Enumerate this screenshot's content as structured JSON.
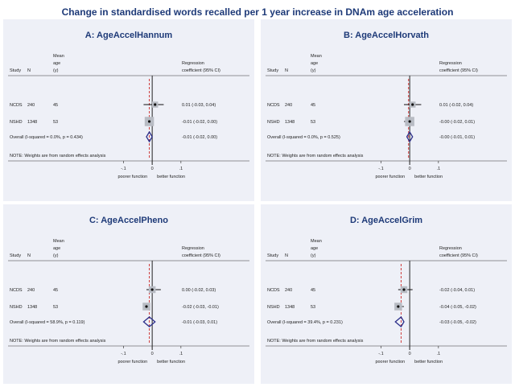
{
  "title": "Change in standardised words recalled per 1 year increase in DNAm age acceleration",
  "column_headers": {
    "study": "Study",
    "n": "N",
    "mean_age_lines": [
      "Mean",
      "age",
      "(y)"
    ],
    "mean_age_lines_d": [
      "Mean",
      "age",
      "(y)"
    ],
    "coef_lines": [
      "Regression",
      "coefficient (95% CI)"
    ]
  },
  "note": "NOTE: Weights are from random effects analysis",
  "x_caption_left": "poorer function",
  "x_caption_right": "better function",
  "tick_labels": [
    "-.1",
    "0",
    ".1"
  ],
  "chart_data": [
    {
      "type": "forest",
      "title": "A: AgeAccelHannum",
      "xlim": [
        -0.16,
        0.12
      ],
      "ticks": [
        -0.1,
        0,
        0.1
      ],
      "null_line": 0,
      "overall_line": -0.01,
      "studies": [
        {
          "study": "NCDS",
          "n": "240",
          "age": "45",
          "est": 0.01,
          "lo": -0.03,
          "hi": 0.04,
          "label": "0.01 (-0.03, 0.04)",
          "weight": 0.35
        },
        {
          "study": "NSHD",
          "n": "1348",
          "age": "53",
          "est": -0.01,
          "lo": -0.02,
          "hi": 0.0,
          "label": "-0.01 (-0.02, 0.00)",
          "weight": 0.75
        }
      ],
      "overall": {
        "label_text": "Overall  (I-squared = 0.0%, p = 0.434)",
        "est": -0.01,
        "lo": -0.02,
        "hi": 0.0,
        "label": "-0.01 (-0.02, 0.00)"
      }
    },
    {
      "type": "forest",
      "title": "B: AgeAccelHorvath",
      "xlim": [
        -0.16,
        0.12
      ],
      "ticks": [
        -0.1,
        0,
        0.1
      ],
      "null_line": 0,
      "overall_line": -0.004,
      "studies": [
        {
          "study": "NCDS",
          "n": "240",
          "age": "45",
          "est": 0.01,
          "lo": -0.02,
          "hi": 0.04,
          "label": "0.01 (-0.02, 0.04)",
          "weight": 0.35
        },
        {
          "study": "NSHD",
          "n": "1348",
          "age": "53",
          "est": -0.0,
          "lo": -0.02,
          "hi": 0.01,
          "label": "-0.00 (-0.02, 0.01)",
          "weight": 0.75
        }
      ],
      "overall": {
        "label_text": "Overall  (I-squared = 0.0%, p = 0.525)",
        "est": -0.0,
        "lo": -0.01,
        "hi": 0.01,
        "label": "-0.00 (-0.01, 0.01)"
      }
    },
    {
      "type": "forest",
      "title": "C: AgeAccelPheno",
      "xlim": [
        -0.16,
        0.12
      ],
      "ticks": [
        -0.1,
        0,
        0.1
      ],
      "null_line": 0,
      "overall_line": -0.01,
      "studies": [
        {
          "study": "NCDS",
          "n": "240",
          "age": "45",
          "est": 0.0,
          "lo": -0.02,
          "hi": 0.03,
          "label": "0.00 (-0.02, 0.03)",
          "weight": 0.45
        },
        {
          "study": "NSHD",
          "n": "1348",
          "age": "53",
          "est": -0.02,
          "lo": -0.03,
          "hi": -0.01,
          "label": "-0.02 (-0.03, -0.01)",
          "weight": 0.55
        }
      ],
      "overall": {
        "label_text": "Overall  (I-squared = 58.9%, p = 0.119)",
        "est": -0.01,
        "lo": -0.03,
        "hi": 0.01,
        "label": "-0.01 (-0.03, 0.01)"
      }
    },
    {
      "type": "forest",
      "title": "D: AgeAccelGrim",
      "xlim": [
        -0.16,
        0.12
      ],
      "ticks": [
        -0.1,
        0,
        0.1
      ],
      "null_line": 0,
      "overall_line": -0.03,
      "studies": [
        {
          "study": "NCDS",
          "n": "240",
          "age": "45",
          "est": -0.02,
          "lo": -0.04,
          "hi": 0.01,
          "label": "-0.02 (-0.04, 0.01)",
          "weight": 0.45
        },
        {
          "study": "NSHD",
          "n": "1348",
          "age": "53",
          "est": -0.04,
          "lo": -0.05,
          "hi": -0.02,
          "label": "-0.04 (-0.05, -0.02)",
          "weight": 0.55
        }
      ],
      "overall": {
        "label_text": "Overall  (I-squared = 39.4%, p = 0.231)",
        "est": -0.03,
        "lo": -0.05,
        "hi": -0.02,
        "label": "-0.03 (-0.05, -0.02)"
      }
    }
  ]
}
